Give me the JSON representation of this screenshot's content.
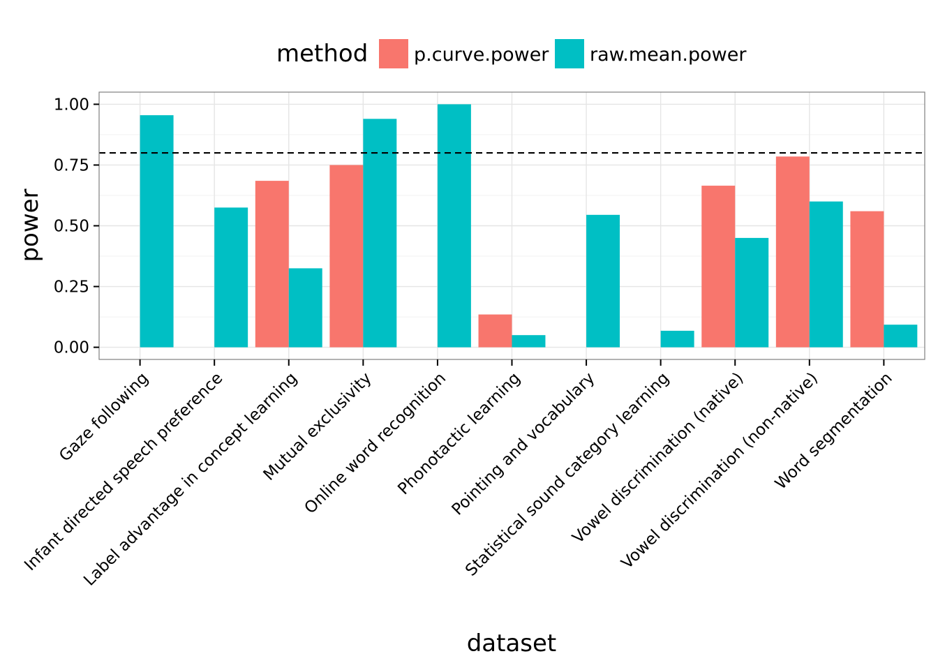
{
  "chart_data": {
    "type": "bar",
    "xlabel": "dataset",
    "ylabel": "power",
    "ylim": [
      -0.05,
      1.05
    ],
    "yticks": [
      "0.00",
      "0.25",
      "0.50",
      "0.75",
      "1.00"
    ],
    "reference_line": {
      "y": 0.8,
      "style": "dashed"
    },
    "grid": true,
    "legend": {
      "title": "method",
      "position": "top"
    },
    "categories": [
      "Gaze following",
      "Infant directed speech preference",
      "Label advantage in concept learning",
      "Mutual exclusivity",
      "Online word recognition",
      "Phonotactic learning",
      "Pointing and vocabulary",
      "Statistical sound category learning",
      "Vowel discrimination (native)",
      "Vowel discrimination (non-native)",
      "Word segmentation"
    ],
    "series": [
      {
        "name": "p.curve.power",
        "color": "#F8766D",
        "values": [
          null,
          null,
          0.685,
          0.75,
          null,
          0.135,
          null,
          null,
          0.665,
          0.785,
          0.56
        ]
      },
      {
        "name": "raw.mean.power",
        "color": "#00BFC4",
        "values": [
          0.955,
          0.575,
          0.325,
          0.94,
          1.0,
          0.05,
          0.545,
          0.068,
          0.45,
          0.6,
          0.093
        ]
      }
    ]
  }
}
